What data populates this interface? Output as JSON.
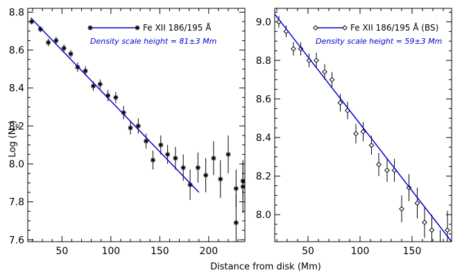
{
  "figure": {
    "ylabel_main": "Log (N",
    "ylabel_sub": "e",
    "ylabel_close": ")",
    "xlabel": "Distance from disk (Mm)"
  },
  "chart_data": [
    {
      "type": "scatter",
      "panel": "left",
      "xlim": [
        15,
        237
      ],
      "ylim": [
        7.59,
        8.82
      ],
      "xticks": [
        50,
        100,
        150,
        200
      ],
      "yticks": [
        7.6,
        7.8,
        8.0,
        8.2,
        8.4,
        8.6,
        8.8
      ],
      "ytick_labels": [
        "7.6",
        "7.8",
        "8.0",
        "8.2",
        "8.4",
        "8.6",
        "8.8"
      ],
      "xtick_labels": [
        "50",
        "100",
        "150",
        "200"
      ],
      "legend": {
        "label": "Fe XII 186/195 Å",
        "marker": "asterisk",
        "placement": "top-right"
      },
      "annotation": "Density scale height = 81±3 Mm",
      "fit_color": "#0000cc",
      "fit": {
        "x": [
          18,
          190
        ],
        "y": [
          8.77,
          7.85
        ]
      },
      "series": [
        {
          "marker": "asterisk",
          "x": [
            19,
            28,
            36,
            44,
            52,
            59,
            66,
            74,
            82,
            89,
            97,
            105,
            113,
            120,
            128,
            136,
            143,
            151,
            158,
            166,
            174,
            181,
            189,
            197,
            205,
            212,
            220,
            228,
            235
          ],
          "y": [
            8.75,
            8.71,
            8.64,
            8.65,
            8.61,
            8.58,
            8.51,
            8.49,
            8.41,
            8.42,
            8.36,
            8.35,
            8.27,
            8.19,
            8.2,
            8.12,
            8.02,
            8.1,
            8.05,
            8.03,
            7.98,
            7.89,
            7.98,
            7.94,
            8.03,
            7.92,
            8.05,
            7.69,
            7.91
          ],
          "err": [
            0.015,
            0.015,
            0.02,
            0.02,
            0.02,
            0.02,
            0.025,
            0.025,
            0.025,
            0.025,
            0.03,
            0.03,
            0.035,
            0.035,
            0.04,
            0.04,
            0.05,
            0.05,
            0.05,
            0.06,
            0.07,
            0.08,
            0.08,
            0.09,
            0.09,
            0.1,
            0.1,
            0.15,
            0.1
          ]
        }
      ],
      "extra_points": {
        "x": [
          228,
          235
        ],
        "y": [
          7.87,
          7.88
        ],
        "err": [
          0.1,
          0.14
        ]
      }
    },
    {
      "type": "scatter",
      "panel": "right",
      "xlim": [
        18,
        188
      ],
      "ylim": [
        7.86,
        9.07
      ],
      "xticks": [
        50,
        100,
        150
      ],
      "yticks": [
        8.0,
        8.2,
        8.4,
        8.6,
        8.8,
        9.0
      ],
      "ytick_labels": [
        "8.0",
        "8.2",
        "8.4",
        "8.6",
        "8.8",
        "9.0"
      ],
      "xtick_labels": [
        "50",
        "100",
        "150"
      ],
      "legend": {
        "label": "Fe XII 186/195 Å (BS)",
        "marker": "diamond",
        "placement": "top-right"
      },
      "annotation": "Density scale height = 59±3 Mm",
      "fit_color": "#0000cc",
      "fit": {
        "x": [
          18,
          188
        ],
        "y": [
          9.04,
          7.86
        ]
      },
      "series": [
        {
          "marker": "diamond",
          "x": [
            22,
            29,
            36,
            43,
            51,
            58,
            66,
            73,
            81,
            88,
            96,
            103,
            111,
            118,
            126,
            133,
            140,
            147,
            155,
            162,
            169,
            177,
            184
          ],
          "y": [
            9.0,
            8.95,
            8.86,
            8.86,
            8.8,
            8.8,
            8.74,
            8.7,
            8.58,
            8.54,
            8.42,
            8.43,
            8.36,
            8.26,
            8.23,
            8.23,
            8.03,
            8.14,
            8.06,
            7.96,
            7.92,
            7.82,
            7.92
          ],
          "err": [
            0.03,
            0.03,
            0.035,
            0.035,
            0.035,
            0.04,
            0.04,
            0.04,
            0.045,
            0.045,
            0.05,
            0.05,
            0.05,
            0.06,
            0.06,
            0.06,
            0.07,
            0.07,
            0.08,
            0.08,
            0.08,
            0.1,
            0.1
          ]
        }
      ]
    }
  ]
}
